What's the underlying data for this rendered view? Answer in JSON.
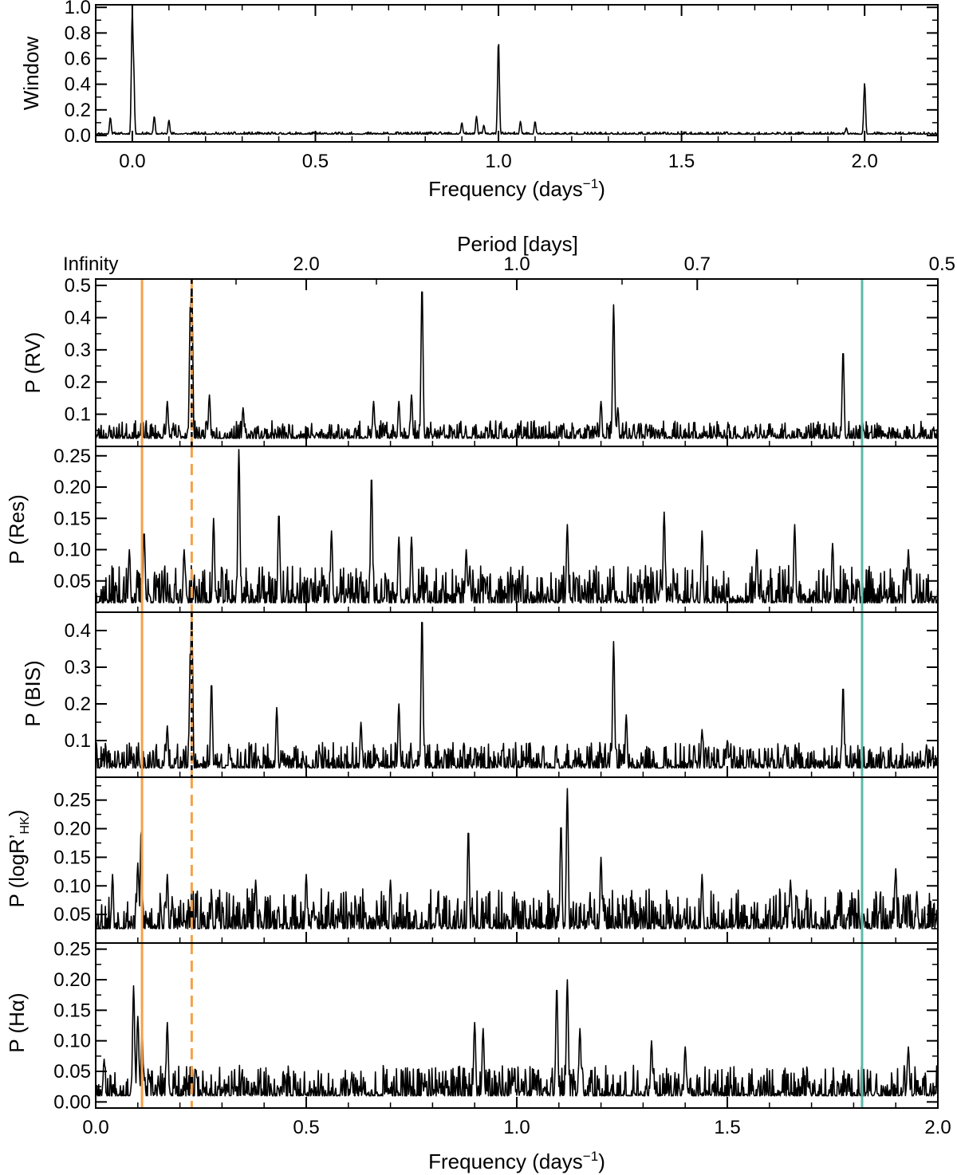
{
  "chart_data": [
    {
      "id": "window",
      "type": "line",
      "title": "",
      "ylabel": "Window",
      "xlabel_main": "Frequency (days",
      "xlabel_sup": "−1",
      "xlabel_tail": ")",
      "xlim": [
        -0.1,
        2.2
      ],
      "ylim": [
        -0.05,
        1.02
      ],
      "xticks": [
        0.0,
        0.5,
        1.0,
        1.5,
        2.0
      ],
      "xtick_labels": [
        "0.0",
        "0.5",
        "1.0",
        "1.5",
        "2.0"
      ],
      "yticks": [
        0.0,
        0.2,
        0.4,
        0.6,
        0.8,
        1.0
      ],
      "ytick_labels": [
        "0.0",
        "0.2",
        "0.4",
        "0.6",
        "0.8",
        "1.0"
      ],
      "baseline": 0.01,
      "noise": 0.018,
      "peaks": [
        [
          0.0,
          1.0
        ],
        [
          0.003,
          0.62
        ],
        [
          1.0,
          0.74
        ],
        [
          2.0,
          0.41
        ],
        [
          -0.06,
          0.14
        ],
        [
          0.06,
          0.15
        ],
        [
          0.1,
          0.12
        ],
        [
          0.9,
          0.1
        ],
        [
          0.94,
          0.15
        ],
        [
          0.96,
          0.08
        ],
        [
          1.06,
          0.11
        ],
        [
          1.1,
          0.11
        ],
        [
          1.95,
          0.06
        ]
      ],
      "vlines": []
    },
    {
      "id": "rv",
      "type": "line",
      "ylabel": "P (RV)",
      "xlim": [
        0.0,
        2.0
      ],
      "ylim": [
        0.0,
        0.52
      ],
      "yticks": [
        0.1,
        0.2,
        0.3,
        0.4,
        0.5
      ],
      "ytick_labels": [
        "0.1",
        "0.2",
        "0.3",
        "0.4",
        "0.5"
      ],
      "baseline": 0.025,
      "noise": 0.055,
      "peaks": [
        [
          0.775,
          0.5
        ],
        [
          1.23,
          0.44
        ],
        [
          1.775,
          0.3
        ],
        [
          0.228,
          0.52
        ],
        [
          0.225,
          0.45
        ],
        [
          0.27,
          0.16
        ],
        [
          0.17,
          0.14
        ],
        [
          0.35,
          0.12
        ],
        [
          0.66,
          0.14
        ],
        [
          0.72,
          0.14
        ],
        [
          0.75,
          0.16
        ],
        [
          1.2,
          0.14
        ],
        [
          1.24,
          0.12
        ]
      ],
      "vlines": [
        [
          0.11,
          "#f5a14a",
          "solid"
        ],
        [
          0.228,
          "#f5a14a",
          "dashed"
        ],
        [
          0.228,
          "#000000",
          "dashed"
        ],
        [
          1.82,
          "#5fb9a9",
          "solid"
        ]
      ]
    },
    {
      "id": "res",
      "type": "line",
      "ylabel": "P (Res)",
      "xlim": [
        0.0,
        2.0
      ],
      "ylim": [
        0.0,
        0.265
      ],
      "yticks": [
        0.05,
        0.1,
        0.15,
        0.2,
        0.25
      ],
      "ytick_labels": [
        "0.05",
        "0.10",
        "0.15",
        "0.20",
        "0.25"
      ],
      "baseline": 0.015,
      "noise": 0.06,
      "peaks": [
        [
          0.34,
          0.26
        ],
        [
          0.655,
          0.22
        ],
        [
          0.435,
          0.16
        ],
        [
          0.56,
          0.13
        ],
        [
          0.115,
          0.13
        ],
        [
          0.28,
          0.15
        ],
        [
          0.72,
          0.12
        ],
        [
          0.75,
          0.12
        ],
        [
          0.88,
          0.1
        ],
        [
          1.12,
          0.14
        ],
        [
          1.35,
          0.16
        ],
        [
          1.44,
          0.13
        ],
        [
          1.66,
          0.14
        ],
        [
          1.75,
          0.11
        ],
        [
          1.57,
          0.1
        ],
        [
          0.08,
          0.1
        ],
        [
          0.21,
          0.1
        ],
        [
          1.93,
          0.1
        ]
      ],
      "vlines": [
        [
          0.11,
          "#f5a14a",
          "solid"
        ],
        [
          0.228,
          "#f5a14a",
          "dashed"
        ],
        [
          1.82,
          "#5fb9a9",
          "solid"
        ]
      ]
    },
    {
      "id": "bis",
      "type": "line",
      "ylabel": "P (BIS)",
      "xlim": [
        0.0,
        2.0
      ],
      "ylim": [
        0.0,
        0.45
      ],
      "yticks": [
        0.1,
        0.2,
        0.3,
        0.4
      ],
      "ytick_labels": [
        "0.1",
        "0.2",
        "0.3",
        "0.4"
      ],
      "baseline": 0.025,
      "noise": 0.07,
      "peaks": [
        [
          0.775,
          0.44
        ],
        [
          1.23,
          0.37
        ],
        [
          1.775,
          0.25
        ],
        [
          0.228,
          0.46
        ],
        [
          0.225,
          0.35
        ],
        [
          0.275,
          0.26
        ],
        [
          0.72,
          0.2
        ],
        [
          1.26,
          0.17
        ],
        [
          0.43,
          0.19
        ],
        [
          0.63,
          0.15
        ],
        [
          1.44,
          0.13
        ],
        [
          0.17,
          0.14
        ],
        [
          1.5,
          0.1
        ]
      ],
      "vlines": [
        [
          0.11,
          "#f5a14a",
          "solid"
        ],
        [
          0.228,
          "#f5a14a",
          "dashed"
        ],
        [
          0.228,
          "#000000",
          "dashed"
        ],
        [
          1.82,
          "#5fb9a9",
          "solid"
        ]
      ]
    },
    {
      "id": "loghk",
      "type": "line",
      "ylabel_main": "P (logR’",
      "ylabel_sub": "HK",
      "ylabel_tail": ")",
      "xlim": [
        0.0,
        2.0
      ],
      "ylim": [
        0.0,
        0.29
      ],
      "yticks": [
        0.05,
        0.1,
        0.15,
        0.2,
        0.25
      ],
      "ytick_labels": [
        "0.05",
        "0.10",
        "0.15",
        "0.20",
        "0.25"
      ],
      "baseline": 0.025,
      "noise": 0.07,
      "peaks": [
        [
          1.12,
          0.27
        ],
        [
          1.105,
          0.21
        ],
        [
          0.885,
          0.2
        ],
        [
          0.108,
          0.2
        ],
        [
          0.1,
          0.14
        ],
        [
          0.17,
          0.12
        ],
        [
          0.38,
          0.11
        ],
        [
          0.5,
          0.12
        ],
        [
          0.7,
          0.11
        ],
        [
          1.2,
          0.15
        ],
        [
          1.44,
          0.12
        ],
        [
          1.65,
          0.11
        ],
        [
          1.9,
          0.13
        ],
        [
          1.95,
          0.09
        ],
        [
          0.04,
          0.12
        ]
      ],
      "vlines": [
        [
          0.11,
          "#f5a14a",
          "solid"
        ],
        [
          0.228,
          "#f5a14a",
          "dashed"
        ],
        [
          1.82,
          "#5fb9a9",
          "solid"
        ]
      ]
    },
    {
      "id": "halpha",
      "type": "line",
      "ylabel_main": "P (Hα)",
      "xlim": [
        0.0,
        2.0
      ],
      "ylim": [
        -0.01,
        0.26
      ],
      "yticks": [
        0.0,
        0.05,
        0.1,
        0.15,
        0.2,
        0.25
      ],
      "ytick_labels": [
        "0.00",
        "0.05",
        "0.10",
        "0.15",
        "0.20",
        "0.25"
      ],
      "xticks": [
        0.0,
        0.5,
        1.0,
        1.5,
        2.0
      ],
      "xtick_labels": [
        "0.0",
        "0.5",
        "1.0",
        "1.5",
        "2.0"
      ],
      "xlabel_main": "Frequency (days",
      "xlabel_sup": "−1",
      "xlabel_tail": ")",
      "baseline": 0.01,
      "noise": 0.05,
      "peaks": [
        [
          0.09,
          0.19
        ],
        [
          0.1,
          0.14
        ],
        [
          0.11,
          0.12
        ],
        [
          0.17,
          0.13
        ],
        [
          1.095,
          0.19
        ],
        [
          1.12,
          0.2
        ],
        [
          0.9,
          0.13
        ],
        [
          0.92,
          0.12
        ],
        [
          1.15,
          0.12
        ],
        [
          1.32,
          0.1
        ],
        [
          1.4,
          0.09
        ],
        [
          1.93,
          0.09
        ],
        [
          0.02,
          0.07
        ]
      ],
      "vlines": [
        [
          0.11,
          "#f5a14a",
          "solid"
        ],
        [
          0.228,
          "#f5a14a",
          "dashed"
        ],
        [
          1.82,
          "#5fb9a9",
          "solid"
        ]
      ]
    }
  ],
  "period_axis": {
    "title": "Period [days]",
    "ticks": [
      {
        "frequency": 0.0,
        "label": "Infinity"
      },
      {
        "frequency": 0.5,
        "label": "2.0"
      },
      {
        "frequency": 1.0,
        "label": "1.0"
      },
      {
        "frequency": 1.4286,
        "label": "0.7"
      },
      {
        "frequency": 2.0,
        "label": "0.5"
      }
    ]
  },
  "colors": {
    "line": "#000000",
    "orange": "#f5a14a",
    "teal": "#5fb9a9"
  }
}
